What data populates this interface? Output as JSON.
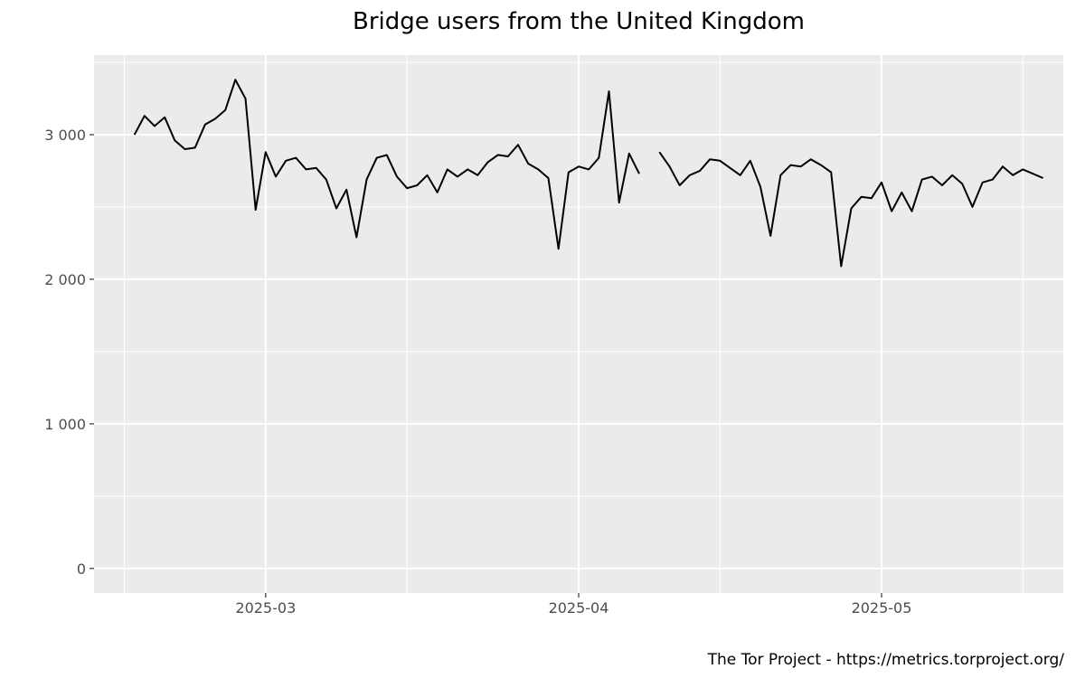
{
  "chart_data": {
    "type": "line",
    "title": "Bridge users from the United Kingdom",
    "caption": "The Tor Project - https://metrics.torproject.org/",
    "xlabel": "",
    "ylabel": "",
    "x_range": [
      "2025-02-12",
      "2025-05-19"
    ],
    "ylim": [
      -170,
      3550
    ],
    "x_ticks": [
      {
        "date": "2025-03-01",
        "label": "2025-03"
      },
      {
        "date": "2025-04-01",
        "label": "2025-04"
      },
      {
        "date": "2025-05-01",
        "label": "2025-05"
      }
    ],
    "x_minor_ticks": [
      "2025-02-15",
      "2025-03-15",
      "2025-04-15",
      "2025-05-15"
    ],
    "y_ticks": [
      {
        "value": 0,
        "label": "0"
      },
      {
        "value": 1000,
        "label": "1 000"
      },
      {
        "value": 2000,
        "label": "2 000"
      },
      {
        "value": 3000,
        "label": "3 000"
      }
    ],
    "y_minor_ticks": [
      500,
      1500,
      2500,
      3500
    ],
    "grid": true,
    "colors": {
      "panel": "#ebebeb",
      "grid": "#ffffff",
      "line": "#000000",
      "tick_text": "#4d4d4d"
    },
    "series": [
      {
        "x": [
          "2025-02-16",
          "2025-02-17",
          "2025-02-18",
          "2025-02-19",
          "2025-02-20",
          "2025-02-21",
          "2025-02-22",
          "2025-02-23",
          "2025-02-24",
          "2025-02-25",
          "2025-02-26",
          "2025-02-27",
          "2025-02-28",
          "2025-03-01",
          "2025-03-02",
          "2025-03-03",
          "2025-03-04",
          "2025-03-05",
          "2025-03-06",
          "2025-03-07",
          "2025-03-08",
          "2025-03-09",
          "2025-03-10",
          "2025-03-11",
          "2025-03-12",
          "2025-03-13",
          "2025-03-14",
          "2025-03-15",
          "2025-03-16",
          "2025-03-17",
          "2025-03-18",
          "2025-03-19",
          "2025-03-20",
          "2025-03-21",
          "2025-03-22",
          "2025-03-23",
          "2025-03-24",
          "2025-03-25",
          "2025-03-26",
          "2025-03-27",
          "2025-03-28",
          "2025-03-29",
          "2025-03-30",
          "2025-03-31",
          "2025-04-01",
          "2025-04-02",
          "2025-04-03",
          "2025-04-04",
          "2025-04-05",
          "2025-04-06",
          "2025-04-07",
          "2025-04-08",
          "2025-04-09",
          "2025-04-10",
          "2025-04-11",
          "2025-04-12",
          "2025-04-13",
          "2025-04-14",
          "2025-04-15",
          "2025-04-16",
          "2025-04-17",
          "2025-04-18",
          "2025-04-19",
          "2025-04-20",
          "2025-04-21",
          "2025-04-22",
          "2025-04-23",
          "2025-04-24",
          "2025-04-25",
          "2025-04-26",
          "2025-04-27",
          "2025-04-28",
          "2025-04-29",
          "2025-04-30",
          "2025-05-01",
          "2025-05-02",
          "2025-05-03",
          "2025-05-04",
          "2025-05-05",
          "2025-05-06",
          "2025-05-07",
          "2025-05-08",
          "2025-05-09",
          "2025-05-10",
          "2025-05-11",
          "2025-05-12",
          "2025-05-13",
          "2025-05-14",
          "2025-05-15",
          "2025-05-16",
          "2025-05-17"
        ],
        "values": [
          3000,
          3130,
          3060,
          3120,
          2960,
          2900,
          2910,
          3070,
          3110,
          3170,
          3380,
          3250,
          2480,
          2880,
          2710,
          2820,
          2840,
          2760,
          2770,
          2690,
          2490,
          2620,
          2290,
          2690,
          2840,
          2860,
          2710,
          2630,
          2650,
          2720,
          2600,
          2760,
          2710,
          2760,
          2720,
          2810,
          2860,
          2850,
          2930,
          2800,
          2760,
          2700,
          2210,
          2740,
          2780,
          2760,
          2840,
          3300,
          2530,
          2870,
          2730,
          null,
          2880,
          2780,
          2650,
          2720,
          2750,
          2830,
          2820,
          2770,
          2720,
          2820,
          2640,
          2300,
          2720,
          2790,
          2780,
          2830,
          2790,
          2740,
          2090,
          2490,
          2570,
          2560,
          2670,
          2470,
          2600,
          2470,
          2690,
          2710,
          2650,
          2720,
          2660,
          2500,
          2670,
          2690,
          2780,
          2720,
          2760,
          2730,
          2700
        ]
      }
    ]
  }
}
